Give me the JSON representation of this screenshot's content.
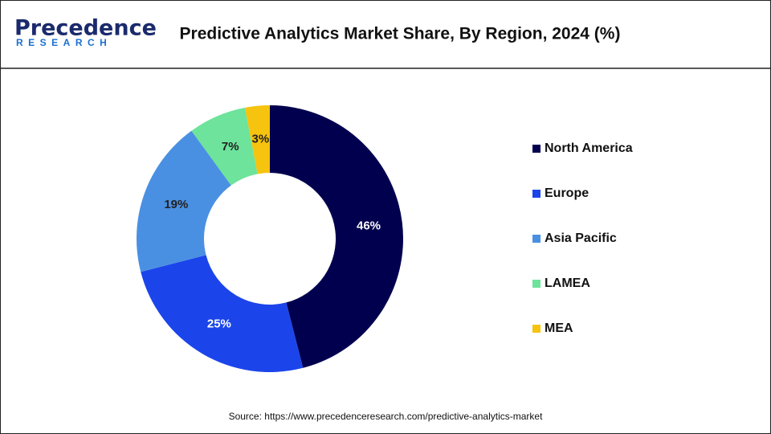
{
  "logo": {
    "name": "Precedence",
    "sub": "RESEARCH"
  },
  "chart_data": {
    "type": "pie",
    "donut": true,
    "title": "Predictive Analytics Market Share, By Region, 2024 (%)",
    "categories": [
      "North America",
      "Europe",
      "Asia Pacific",
      "LAMEA",
      "MEA"
    ],
    "values": [
      46,
      25,
      19,
      7,
      3
    ],
    "value_labels": [
      "46%",
      "25%",
      "19%",
      "7%",
      "3%"
    ],
    "colors": [
      "#00004f",
      "#1b45ea",
      "#4a90e2",
      "#6de39b",
      "#f6c30f"
    ],
    "source": "Source: https://www.precedenceresearch.com/predictive-analytics-market"
  }
}
